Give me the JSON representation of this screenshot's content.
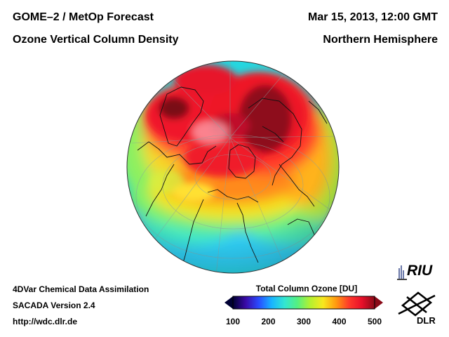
{
  "header": {
    "title": "GOME–2 / MetOp Forecast",
    "subtitle": "Ozone Vertical Column Density",
    "datetime": "Mar 15, 2013, 12:00 GMT",
    "region": "Northern Hemisphere"
  },
  "footer": {
    "line1": "4DVar Chemical Data Assimilation",
    "line2": "SACADA Version 2.4",
    "line3": "http://wdc.dlr.de"
  },
  "colorbar": {
    "title": "Total Column Ozone [DU]",
    "ticks": [
      "100",
      "200",
      "300",
      "400",
      "500"
    ],
    "range": [
      100,
      500
    ],
    "colors": [
      "#000033",
      "#3a0aa8",
      "#2a4bff",
      "#18b4ff",
      "#33e6d2",
      "#55f080",
      "#b4f030",
      "#f8e81e",
      "#ff9a10",
      "#ff3a2a",
      "#e8102a",
      "#8a0a18"
    ]
  },
  "map": {
    "projection": "orthographic",
    "hemisphere": "northern"
  },
  "logos": {
    "riu": "RIU",
    "dlr": "DLR"
  }
}
